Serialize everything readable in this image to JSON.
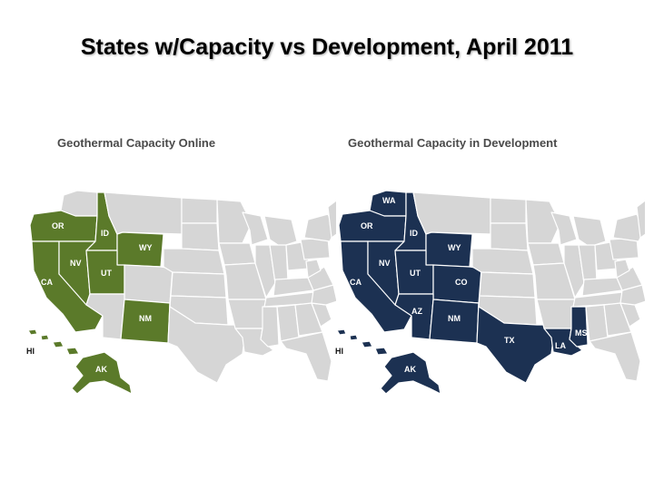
{
  "title": "States w/Capacity vs Development, April 2011",
  "colors": {
    "online": "#5b7a2a",
    "development": "#1c3152",
    "base": "#d6d6d6",
    "border": "#ffffff",
    "label_online": "#ffffff",
    "label_online_small": "#111111"
  },
  "maps": [
    {
      "title": "Geothermal Capacity Online",
      "highlighted": [
        "OR",
        "ID",
        "WY",
        "CA",
        "NV",
        "UT",
        "NM",
        "HI",
        "AK"
      ],
      "labels": [
        {
          "state": "OR",
          "text": "OR"
        },
        {
          "state": "ID",
          "text": "ID"
        },
        {
          "state": "WY",
          "text": "WY"
        },
        {
          "state": "NV",
          "text": "NV"
        },
        {
          "state": "UT",
          "text": "UT"
        },
        {
          "state": "CA",
          "text": "CA"
        },
        {
          "state": "NM",
          "text": "NM"
        },
        {
          "state": "HI",
          "text": "HI"
        },
        {
          "state": "AK",
          "text": "AK"
        }
      ]
    },
    {
      "title": "Geothermal Capacity in Development",
      "highlighted": [
        "WA",
        "OR",
        "ID",
        "WY",
        "CA",
        "NV",
        "UT",
        "CO",
        "AZ",
        "NM",
        "TX",
        "LA",
        "MS",
        "HI",
        "AK"
      ],
      "labels": [
        {
          "state": "WA",
          "text": "WA"
        },
        {
          "state": "OR",
          "text": "OR"
        },
        {
          "state": "ID",
          "text": "ID"
        },
        {
          "state": "WY",
          "text": "WY"
        },
        {
          "state": "NV",
          "text": "NV"
        },
        {
          "state": "UT",
          "text": "UT"
        },
        {
          "state": "CO",
          "text": "CO"
        },
        {
          "state": "CA",
          "text": "CA"
        },
        {
          "state": "AZ",
          "text": "AZ"
        },
        {
          "state": "NM",
          "text": "NM"
        },
        {
          "state": "TX",
          "text": "TX"
        },
        {
          "state": "LA",
          "text": "LA"
        },
        {
          "state": "MS",
          "text": "MS"
        },
        {
          "state": "HI",
          "text": "HI"
        },
        {
          "state": "AK",
          "text": "AK"
        }
      ]
    }
  ]
}
